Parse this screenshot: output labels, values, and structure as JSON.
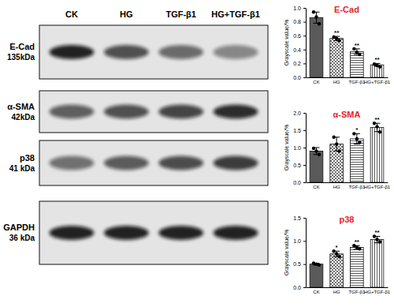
{
  "blot": {
    "lanes": [
      "CK",
      "HG",
      "TGF-β1",
      "HG+TGF-β1"
    ],
    "rows": [
      {
        "protein": "E-Cad",
        "size": "135kDa"
      },
      {
        "protein": "α-SMA",
        "size": "42kDa"
      },
      {
        "protein": "p38",
        "size": "41 kDa"
      },
      {
        "protein": "GAPDH",
        "size": "36 kDa"
      }
    ]
  },
  "chart_data": [
    {
      "type": "bar",
      "title": "E-Cad",
      "y_label": "Grayscale value/%",
      "categories": [
        "CK",
        "HG",
        "TGF-β1",
        "HG+TGF-β1"
      ],
      "values": [
        0.86,
        0.56,
        0.37,
        0.18
      ],
      "errors": [
        0.08,
        0.03,
        0.04,
        0.02
      ],
      "points": [
        [
          0.94,
          0.87,
          0.77
        ],
        [
          0.58,
          0.56,
          0.53
        ],
        [
          0.41,
          0.36,
          0.33
        ],
        [
          0.19,
          0.17,
          0.15
        ]
      ],
      "significance": [
        null,
        "**",
        "**",
        "**"
      ],
      "colors": [
        "#5a5a5a",
        "#ffffff",
        "#ffffff",
        "#ffffff"
      ],
      "ylim": [
        0,
        1.0
      ],
      "yticks": [
        {
          "value": 0,
          "label": "0.0"
        },
        0.2,
        0.4,
        0.6,
        0.8,
        {
          "value": 1.0,
          "label": "1.0"
        }
      ]
    },
    {
      "type": "bar",
      "title": "α-SMA",
      "y_label": "Grayscale value/%",
      "categories": [
        "CK",
        "HG",
        "TGF-β1",
        "HG+TGF-β1"
      ],
      "values": [
        0.9,
        1.1,
        1.25,
        1.58
      ],
      "errors": [
        0.1,
        0.2,
        0.15,
        0.12
      ],
      "points": [
        [
          0.98,
          0.9,
          0.8
        ],
        [
          1.3,
          1.1,
          0.9
        ],
        [
          1.4,
          1.25,
          1.15
        ],
        [
          1.7,
          1.6,
          1.45
        ]
      ],
      "significance": [
        null,
        null,
        "*",
        "**"
      ],
      "colors": [
        "#5a5a5a",
        "#ffffff",
        "#ffffff",
        "#ffffff"
      ],
      "ylim": [
        0,
        2.0
      ],
      "yticks": [
        {
          "value": 0,
          "label": "0.0"
        },
        0.5,
        {
          "value": 1.0,
          "label": "1.0"
        },
        1.5,
        {
          "value": 2.0,
          "label": "2.0"
        }
      ]
    },
    {
      "type": "bar",
      "title": "p38",
      "y_label": "Grayscale value/%",
      "categories": [
        "CK",
        "HG",
        "TGF-β1",
        "HG+TGF-β1"
      ],
      "values": [
        0.5,
        0.72,
        0.86,
        1.03
      ],
      "errors": [
        0.02,
        0.06,
        0.04,
        0.07
      ],
      "points": [
        [
          0.52,
          0.5,
          0.48
        ],
        [
          0.78,
          0.72,
          0.66
        ],
        [
          0.9,
          0.86,
          0.83
        ],
        [
          1.1,
          1.03,
          0.98
        ]
      ],
      "significance": [
        null,
        "*",
        "**",
        "**"
      ],
      "colors": [
        "#5a5a5a",
        "#ffffff",
        "#ffffff",
        "#ffffff"
      ],
      "ylim": [
        0,
        1.5
      ],
      "yticks": [
        {
          "value": 0,
          "label": "0.0"
        },
        0.5,
        {
          "value": 1.0,
          "label": "1.0"
        },
        1.5
      ]
    }
  ]
}
